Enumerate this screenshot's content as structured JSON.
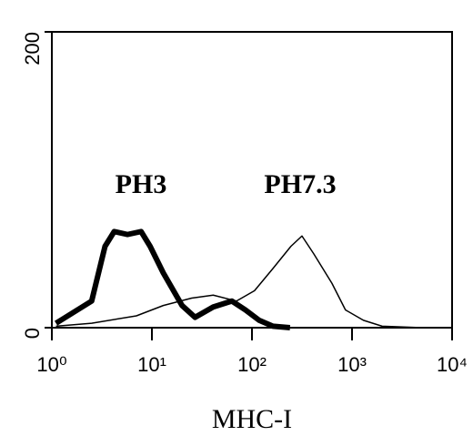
{
  "chart_data": {
    "type": "line",
    "x_label": "MHC-I",
    "annotations": [
      "PH3",
      "PH7.3"
    ],
    "xscale": "log",
    "xlim": [
      1,
      10000
    ],
    "xticks": [
      {
        "value": 1,
        "label": "10⁰"
      },
      {
        "value": 10,
        "label": "10¹"
      },
      {
        "value": 100,
        "label": "10²"
      },
      {
        "value": 1000,
        "label": "10³"
      },
      {
        "value": 10000,
        "label": "10⁴"
      }
    ],
    "ylim": [
      0,
      200
    ],
    "yticks": [
      0,
      200
    ],
    "series": [
      {
        "name": "PH3",
        "color": "#000000",
        "width": 6,
        "x": [
          1.1,
          2.5,
          3.4,
          4.2,
          5.7,
          7.8,
          9.6,
          13,
          20,
          27,
          41,
          63,
          86,
          118,
          162,
          240
        ],
        "values": [
          3,
          18,
          55,
          65,
          63,
          65,
          55,
          37,
          15,
          7,
          14,
          18,
          12,
          5,
          1,
          0
        ]
      },
      {
        "name": "PH7.3",
        "color": "#000000",
        "width": 1.5,
        "x": [
          1.1,
          2.5,
          7,
          13,
          25,
          41,
          70,
          106,
          162,
          245,
          316,
          414,
          630,
          860,
          1300,
          2000,
          5000
        ],
        "values": [
          1,
          3,
          8,
          15,
          20,
          22,
          18,
          25,
          40,
          55,
          62,
          50,
          30,
          12,
          5,
          1,
          0
        ]
      }
    ]
  }
}
